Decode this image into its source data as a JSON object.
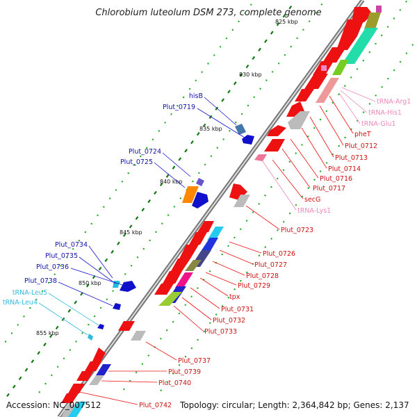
{
  "header": {
    "title": "Chlorobium luteolum DSM 273, complete genome",
    "top_scale_label": "825 kbp"
  },
  "footer": {
    "accession": "Accession: NC_007512",
    "summary": "Topology: circular; Length: 2,364,842 bp; Genes: 2,137"
  },
  "colors": {
    "forward_cds": "#ee1111",
    "reverse_cds": "#1111cc",
    "trna": "#ee88bb",
    "trna_left": "#33bbdd",
    "backbone": "#888888",
    "gc_dots": "#229922"
  },
  "scale_ticks": [
    "830 kbp",
    "835 kbp",
    "840 kbp",
    "845 kbp",
    "850 kbp",
    "855 kbp"
  ],
  "right_labels": [
    {
      "text": "tRNA-Arg1",
      "kind": "trna"
    },
    {
      "text": "tRNA-His1",
      "kind": "trna"
    },
    {
      "text": "tRNA-Glu1",
      "kind": "trna"
    },
    {
      "text": "pheT",
      "kind": "gene"
    },
    {
      "text": "Plut_0712",
      "kind": "gene"
    },
    {
      "text": "Plut_0713",
      "kind": "gene"
    },
    {
      "text": "Plut_0714",
      "kind": "gene"
    },
    {
      "text": "Plut_0716",
      "kind": "gene"
    },
    {
      "text": "Plut_0717",
      "kind": "gene"
    },
    {
      "text": "secG",
      "kind": "gene"
    },
    {
      "text": "tRNA-Lys1",
      "kind": "trna"
    },
    {
      "text": "Plut_0723",
      "kind": "gene"
    },
    {
      "text": "Plut_0726",
      "kind": "gene"
    },
    {
      "text": "Plut_0727",
      "kind": "gene"
    },
    {
      "text": "Plut_0728",
      "kind": "gene"
    },
    {
      "text": "Plut_0729",
      "kind": "gene"
    },
    {
      "text": "tpx",
      "kind": "gene"
    },
    {
      "text": "Plut_0731",
      "kind": "gene"
    },
    {
      "text": "Plut_0732",
      "kind": "gene"
    },
    {
      "text": "Plut_0733",
      "kind": "gene"
    },
    {
      "text": "Plut_0737",
      "kind": "gene"
    },
    {
      "text": "Plut_0739",
      "kind": "gene"
    },
    {
      "text": "Plut_0740",
      "kind": "gene"
    },
    {
      "text": "Plut_0742",
      "kind": "gene"
    }
  ],
  "left_labels": [
    {
      "text": "hisB",
      "kind": "gene"
    },
    {
      "text": "Plut_0719",
      "kind": "gene"
    },
    {
      "text": "Plut_0724",
      "kind": "gene"
    },
    {
      "text": "Plut_0725",
      "kind": "gene"
    },
    {
      "text": "Plut_0734",
      "kind": "gene"
    },
    {
      "text": "Plut_0735",
      "kind": "gene"
    },
    {
      "text": "Plut_0736",
      "kind": "gene"
    },
    {
      "text": "Plut_0738",
      "kind": "gene"
    },
    {
      "text": "tRNA-Leu5",
      "kind": "trna"
    },
    {
      "text": "tRNA-Leu4",
      "kind": "trna"
    }
  ]
}
